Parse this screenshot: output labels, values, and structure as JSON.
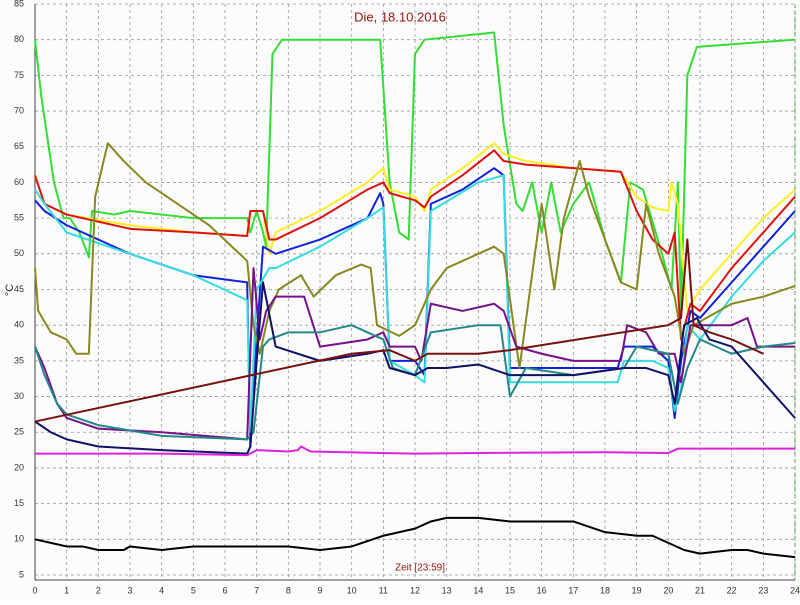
{
  "chart_data": {
    "type": "line",
    "title": "Die, 18.10.2016",
    "x_label": "Zeit [23:59]",
    "y_label": "°C",
    "xlim": [
      0,
      24
    ],
    "xticks": [
      0,
      1,
      2,
      3,
      4,
      5,
      6,
      7,
      8,
      9,
      10,
      11,
      12,
      13,
      14,
      15,
      16,
      17,
      18,
      19,
      20,
      21,
      22,
      23,
      24
    ],
    "ylim": [
      4.3,
      85
    ],
    "yticks": [
      5,
      10,
      15,
      20,
      25,
      30,
      35,
      40,
      45,
      50,
      55,
      60,
      65,
      70,
      75,
      80,
      85
    ],
    "grid": true,
    "series": [
      {
        "color": "#33dd33",
        "x": [
          0,
          0.2,
          0.6,
          0.9,
          1.1,
          1.4,
          1.7,
          1.8,
          2.5,
          3,
          4,
          5,
          6.7,
          6.8,
          7,
          7.2,
          7.3,
          7.5,
          7.8,
          10.9,
          11.2,
          11.5,
          11.8,
          12,
          12.3,
          14.5,
          14.8,
          15.2,
          15.4,
          15.7,
          16,
          16.3,
          16.6,
          17,
          17.5,
          18,
          18.5,
          18.8,
          19.2,
          19.8,
          20.1,
          20.3,
          20.4,
          20.6,
          20.9,
          24
        ],
        "values": [
          80,
          72,
          60,
          55,
          55,
          53,
          49.5,
          56,
          55.5,
          56,
          55.5,
          55,
          55,
          53,
          56,
          53,
          51,
          78,
          80,
          80,
          60,
          53,
          52,
          78,
          80,
          81,
          68,
          57,
          56,
          60,
          53,
          60,
          53,
          57,
          60,
          52,
          46,
          60,
          59,
          50,
          45,
          60,
          42,
          75,
          79,
          80
        ]
      },
      {
        "color": "#ffee22",
        "x": [
          0,
          0.3,
          1,
          3,
          5,
          6.7,
          6.8,
          7.2,
          7.4,
          7.6,
          9,
          10.5,
          11,
          11.2,
          12,
          12.3,
          12.5,
          13.5,
          14.5,
          14.8,
          15.5,
          17,
          18.5,
          19,
          19.5,
          20,
          20.1,
          20.3,
          20.6,
          21,
          22,
          23,
          24
        ],
        "values": [
          61,
          57,
          55.5,
          54,
          53,
          52.5,
          56,
          56,
          50,
          53,
          56,
          60,
          62,
          59,
          58,
          56,
          59,
          62,
          65.5,
          64,
          63,
          62,
          61.5,
          58,
          56.5,
          56,
          60,
          57,
          42,
          45,
          50,
          55,
          59
        ]
      },
      {
        "color": "#dd1111",
        "x": [
          0,
          0.3,
          1,
          3,
          5,
          6.7,
          6.8,
          7.2,
          7.4,
          7.6,
          9,
          10.5,
          11,
          11.2,
          12,
          12.3,
          12.5,
          13.5,
          14.5,
          14.8,
          15.5,
          17,
          18.5,
          19,
          19.5,
          20,
          20.2,
          20.4,
          20.7,
          21,
          22,
          23,
          24
        ],
        "values": [
          61,
          57,
          55.5,
          53.5,
          53,
          52.5,
          56,
          56,
          52,
          52,
          55,
          59,
          60,
          58.5,
          57.5,
          56.5,
          58,
          61,
          64.5,
          63,
          62.5,
          62,
          61.5,
          56,
          52,
          50,
          53,
          38,
          43,
          42,
          48,
          53,
          58
        ]
      },
      {
        "color": "#1122dd",
        "x": [
          0,
          0.3,
          1,
          3,
          5,
          6.7,
          6.8,
          7,
          7.2,
          7.6,
          9,
          10.5,
          10.9,
          11,
          11.2,
          12,
          12.3,
          12.5,
          13.5,
          14.5,
          14.8,
          15,
          17,
          18.4,
          18.6,
          19.5,
          20,
          20.2,
          20.4,
          20.7,
          21,
          22,
          23,
          24
        ],
        "values": [
          57.5,
          56,
          54,
          50,
          47,
          46,
          23,
          38,
          51,
          50,
          52,
          55,
          58.5,
          57,
          35,
          35,
          33,
          57,
          59,
          62,
          61,
          34,
          34,
          34,
          37,
          37,
          35,
          27,
          35,
          42,
          41,
          46,
          51,
          56
        ]
      },
      {
        "color": "#33dddd",
        "x": [
          0,
          0.3,
          1,
          3,
          5,
          6.7,
          6.8,
          7,
          7.4,
          7.6,
          9,
          10.5,
          11,
          11.2,
          12,
          12.3,
          12.5,
          14,
          14.8,
          15,
          17,
          18.4,
          18.6,
          19.5,
          20,
          20.2,
          20.4,
          20.6,
          21,
          22,
          23,
          24
        ],
        "values": [
          59,
          57,
          53,
          50,
          47,
          43.5,
          25,
          45,
          48,
          48,
          51,
          55,
          56.5,
          35,
          33,
          32,
          56,
          60,
          61,
          32,
          32,
          32,
          35,
          35,
          34,
          28,
          31,
          40,
          38,
          44,
          49,
          53
        ]
      },
      {
        "color": "#888822",
        "x": [
          0,
          0.1,
          0.5,
          1,
          1.3,
          1.7,
          1.9,
          2.3,
          2.8,
          3.5,
          4.5,
          5.5,
          6.7,
          6.9,
          7.1,
          7.4,
          7.7,
          8.4,
          8.8,
          9.5,
          10.3,
          10.6,
          10.8,
          11.5,
          12,
          12.5,
          13,
          14,
          14.5,
          14.8,
          15.3,
          16,
          16.4,
          16.7,
          17.2,
          17.5,
          18,
          18.5,
          19,
          19.3,
          19.7,
          20.2,
          20.5,
          20.8,
          21.2,
          22,
          23,
          24
        ],
        "values": [
          48,
          42,
          39,
          38,
          36,
          36,
          58,
          65.5,
          63,
          60,
          57,
          54,
          49,
          40,
          36,
          42,
          45,
          47,
          44,
          47,
          48.5,
          48,
          40,
          38.5,
          40,
          45,
          48,
          50,
          51,
          50,
          34,
          57,
          45,
          55,
          63,
          58,
          52,
          46,
          45,
          57,
          50,
          44,
          36,
          40,
          41,
          43,
          44,
          45.5
        ]
      },
      {
        "color": "#771188",
        "x": [
          0,
          0.3,
          0.7,
          1,
          2,
          4,
          6.7,
          6.9,
          7.1,
          7.3,
          7.6,
          8.5,
          9,
          10.5,
          11,
          11.2,
          12,
          12.2,
          12.5,
          13.5,
          14.5,
          14.8,
          15.2,
          16,
          17,
          18.5,
          18.7,
          19.3,
          19.7,
          20.2,
          20.4,
          20.7,
          21.2,
          22,
          22.5,
          22.8,
          24
        ],
        "values": [
          37,
          34,
          29,
          27,
          25.5,
          25,
          24,
          48,
          38,
          42,
          44,
          44,
          37,
          38,
          39,
          37,
          37,
          35,
          43,
          42,
          43,
          42,
          37,
          36,
          35,
          35,
          40,
          39,
          36,
          36,
          32,
          40,
          40,
          40,
          41,
          37,
          37
        ]
      },
      {
        "color": "#228888",
        "x": [
          0,
          0.3,
          0.7,
          1,
          2,
          4,
          6.7,
          6.9,
          7.2,
          7.4,
          8,
          9,
          10,
          11,
          11.3,
          12,
          12.5,
          14,
          14.7,
          15,
          15.5,
          17,
          18.6,
          19,
          20,
          20.3,
          20.6,
          21,
          22,
          23,
          24
        ],
        "values": [
          37,
          33,
          29,
          27.5,
          26,
          24.5,
          24,
          25,
          37,
          38,
          39,
          39,
          40,
          38,
          34,
          33,
          39,
          40,
          40,
          30,
          34,
          33,
          34,
          37,
          36,
          29,
          34,
          38,
          36,
          37,
          37.5
        ]
      },
      {
        "color": "#111166",
        "x": [
          0,
          0.5,
          1,
          2,
          4,
          6.7,
          6.8,
          7,
          7.2,
          7.6,
          9,
          10.5,
          11,
          11.2,
          12,
          12.4,
          13,
          14,
          15,
          17,
          18.6,
          19.3,
          20,
          20.2,
          20.5,
          20.9,
          21.3,
          22,
          23,
          24
        ],
        "values": [
          26.5,
          25,
          24,
          23,
          22.5,
          22,
          23,
          35,
          46,
          37,
          35,
          36,
          36.5,
          34,
          33,
          34,
          34,
          34.5,
          33,
          33,
          34,
          34,
          33,
          29,
          40,
          41,
          38,
          37,
          32,
          27
        ]
      },
      {
        "color": "#771111",
        "x": [
          0,
          10,
          11.2,
          12,
          12.4,
          14,
          15,
          20,
          20.4,
          20.6,
          20.8,
          21.3,
          22,
          23
        ],
        "values": [
          26.5,
          36,
          36.5,
          35,
          36,
          36,
          36.5,
          40,
          41,
          52,
          40,
          39,
          38,
          36
        ]
      },
      {
        "color": "#dd22dd",
        "x": [
          0,
          4,
          6.7,
          7,
          8,
          8.3,
          8.4,
          8.7,
          12,
          14,
          18,
          20,
          20.3,
          24
        ],
        "values": [
          22,
          22,
          21.8,
          22.5,
          22.3,
          22.5,
          23,
          22.3,
          22,
          22.1,
          22.2,
          22.1,
          22.7,
          22.7
        ]
      },
      {
        "color": "#000000",
        "x": [
          0,
          0.5,
          1,
          1.5,
          2,
          2.8,
          3,
          4,
          5,
          6,
          7,
          8,
          9,
          10,
          11,
          12,
          12.5,
          13,
          14,
          15,
          16,
          17,
          18,
          19,
          19.5,
          20,
          20.5,
          21,
          22,
          22.5,
          23,
          24
        ],
        "values": [
          10,
          9.5,
          9,
          9,
          8.5,
          8.5,
          9,
          8.5,
          9,
          9,
          9,
          9,
          8.5,
          9,
          10.5,
          11.5,
          12.5,
          13,
          13,
          12.5,
          12.5,
          12.5,
          11,
          10.5,
          10.5,
          9.5,
          8.5,
          8,
          8.5,
          8.5,
          8,
          7.5
        ]
      }
    ]
  }
}
